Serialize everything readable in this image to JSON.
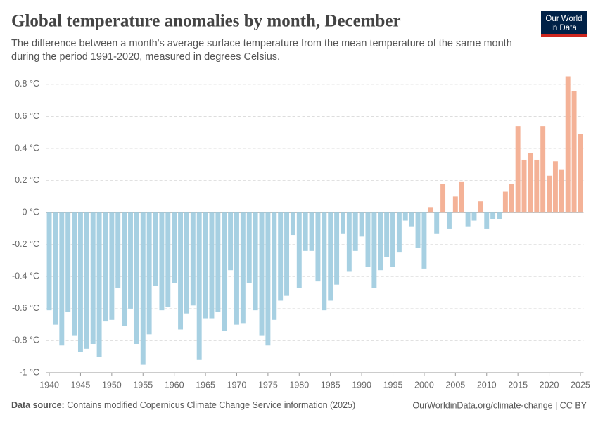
{
  "chart_data": {
    "type": "bar",
    "title": "Global temperature anomalies by month, December",
    "subtitle": [
      "The difference between a month's average surface temperature from the mean temperature of the same month",
      "during the period 1991-2020, measured in degrees Celsius."
    ],
    "x": [
      1940,
      1941,
      1942,
      1943,
      1944,
      1945,
      1946,
      1947,
      1948,
      1949,
      1950,
      1951,
      1952,
      1953,
      1954,
      1955,
      1956,
      1957,
      1958,
      1959,
      1960,
      1961,
      1962,
      1963,
      1964,
      1965,
      1966,
      1967,
      1968,
      1969,
      1970,
      1971,
      1972,
      1973,
      1974,
      1975,
      1976,
      1977,
      1978,
      1979,
      1980,
      1981,
      1982,
      1983,
      1984,
      1985,
      1986,
      1987,
      1988,
      1989,
      1990,
      1991,
      1992,
      1993,
      1994,
      1995,
      1996,
      1997,
      1998,
      1999,
      2000,
      2001,
      2002,
      2003,
      2004,
      2005,
      2006,
      2007,
      2008,
      2009,
      2010,
      2011,
      2012,
      2013,
      2014,
      2015,
      2016,
      2017,
      2018,
      2019,
      2020,
      2021,
      2022,
      2023,
      2024,
      2025
    ],
    "values": [
      -0.61,
      -0.7,
      -0.83,
      -0.62,
      -0.77,
      -0.87,
      -0.85,
      -0.82,
      -0.9,
      -0.68,
      -0.67,
      -0.47,
      -0.71,
      -0.6,
      -0.82,
      -0.95,
      -0.76,
      -0.46,
      -0.61,
      -0.59,
      -0.44,
      -0.73,
      -0.63,
      -0.58,
      -0.92,
      -0.66,
      -0.66,
      -0.62,
      -0.74,
      -0.36,
      -0.7,
      -0.69,
      -0.44,
      -0.61,
      -0.77,
      -0.83,
      -0.67,
      -0.55,
      -0.52,
      -0.14,
      -0.47,
      -0.24,
      -0.24,
      -0.43,
      -0.61,
      -0.55,
      -0.45,
      -0.13,
      -0.37,
      -0.24,
      -0.15,
      -0.34,
      -0.47,
      -0.36,
      -0.28,
      -0.34,
      -0.25,
      -0.05,
      -0.09,
      -0.22,
      -0.35,
      0.03,
      -0.13,
      0.18,
      -0.1,
      0.1,
      0.19,
      -0.09,
      -0.05,
      0.07,
      -0.1,
      -0.04,
      -0.04,
      0.13,
      0.18,
      0.54,
      0.33,
      0.37,
      0.33,
      0.54,
      0.23,
      0.32,
      0.27,
      0.85,
      0.76,
      0.49
    ],
    "colors": {
      "positive": "#f4b297",
      "negative": "#a7d0e2"
    },
    "xlim": [
      1939.5,
      2025.5
    ],
    "xticks": [
      1940,
      1945,
      1950,
      1955,
      1960,
      1965,
      1970,
      1975,
      1980,
      1985,
      1990,
      1995,
      2000,
      2005,
      2010,
      2015,
      2020,
      2025
    ],
    "ylim": [
      -1,
      0.85
    ],
    "yticks": [
      {
        "value": -1,
        "label": "-1 °C"
      },
      {
        "value": -0.8,
        "label": "-0.8 °C"
      },
      {
        "value": -0.6,
        "label": "-0.6 °C"
      },
      {
        "value": -0.4,
        "label": "-0.4 °C"
      },
      {
        "value": -0.2,
        "label": "-0.2 °C"
      },
      {
        "value": 0,
        "label": "0 °C"
      },
      {
        "value": 0.2,
        "label": "0.2 °C"
      },
      {
        "value": 0.4,
        "label": "0.4 °C"
      },
      {
        "value": 0.6,
        "label": "0.6 °C"
      },
      {
        "value": 0.8,
        "label": "0.8 °C"
      }
    ],
    "grid": true,
    "logo": [
      "Our World",
      "in Data"
    ],
    "source_label": "Data source:",
    "source": "Contains modified Copernicus Climate Change Service information (2025)",
    "credit": "OurWorldinData.org/climate-change | CC BY"
  }
}
